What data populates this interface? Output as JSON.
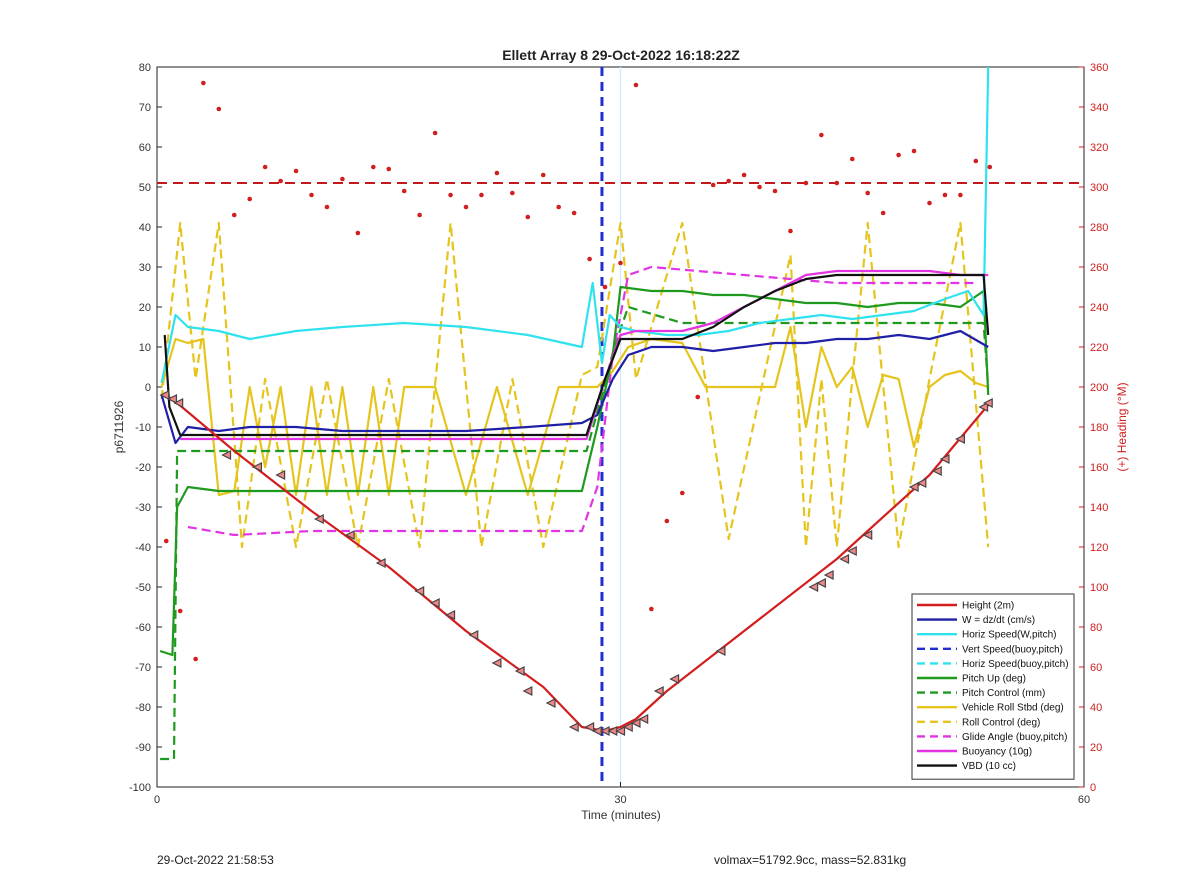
{
  "chart_data": {
    "type": "line",
    "title": "Ellett Array 8 29-Oct-2022 16:18:22Z",
    "xlabel": "Time (minutes)",
    "ylabel": "p6711926",
    "y2label": "(+) Heading (°M)",
    "xlim": [
      0,
      60
    ],
    "ylim": [
      -100,
      80
    ],
    "y2lim": [
      0,
      360
    ],
    "xticks": [
      0,
      30,
      60
    ],
    "yticks": [
      -100,
      -90,
      -80,
      -70,
      -60,
      -50,
      -40,
      -30,
      -20,
      -10,
      0,
      10,
      20,
      30,
      40,
      50,
      60,
      70,
      80
    ],
    "y2ticks": [
      0,
      20,
      40,
      60,
      80,
      100,
      120,
      140,
      160,
      180,
      200,
      220,
      240,
      260,
      280,
      300,
      320,
      340,
      360
    ],
    "grid": false,
    "legend_position": "bottom-right",
    "vlines": [
      {
        "x": 28.8,
        "color": "#1f2fd0",
        "dash": true
      },
      {
        "x": 30.0,
        "color": "#cfe8ff",
        "dash": false
      }
    ],
    "series": [
      {
        "name": "Height (2m)",
        "color": "#d21e1e",
        "style": "solid",
        "x": [
          0.5,
          1.0,
          5.0,
          10.0,
          15.0,
          20.0,
          25.0,
          27.5,
          29.0,
          30.0,
          31.0,
          33.0,
          38.0,
          44.0,
          50.0,
          53.9
        ],
        "y": [
          -2,
          -3,
          -16,
          -31,
          -45,
          -61,
          -75,
          -85,
          -86,
          -85,
          -83,
          -76,
          -61,
          -43,
          -22,
          -4
        ]
      },
      {
        "name": "W = dz/dt (cm/s)",
        "color": "#1f1fa8",
        "style": "solid",
        "x": [
          0.3,
          1.2,
          2,
          4,
          6,
          9,
          12,
          16,
          20,
          24,
          27.5,
          28.5,
          29.5,
          30.5,
          32,
          34,
          36,
          38,
          40,
          42,
          44,
          46,
          48,
          50,
          52,
          53.8
        ],
        "y": [
          -2,
          -14,
          -10,
          -11,
          -10,
          -10,
          -11,
          -11,
          -11,
          -10,
          -9,
          -7,
          2,
          8,
          10,
          10,
          9,
          10,
          11,
          11,
          12,
          12,
          13,
          12,
          14,
          10
        ]
      },
      {
        "name": "Horiz Speed(W,pitch)",
        "color": "#2fe2ee",
        "style": "solid",
        "x": [
          0.3,
          1.2,
          2,
          4,
          6,
          9,
          12,
          16,
          20,
          24,
          27.5,
          28.2,
          28.8,
          29.3,
          30,
          31,
          33,
          35,
          37,
          39,
          41,
          43,
          45,
          47,
          49,
          51,
          52.5,
          53.5,
          53.8
        ],
        "y": [
          1,
          18,
          15,
          14,
          12,
          14,
          15,
          16,
          15,
          13,
          10,
          26,
          6,
          18,
          15,
          14,
          13,
          13,
          14,
          16,
          17,
          18,
          17,
          18,
          19,
          22,
          24,
          18,
          80
        ]
      },
      {
        "name": "Vert Speed(buoy,pitch)",
        "color": "#1f2fd0",
        "style": "dashed",
        "x": [],
        "y": []
      },
      {
        "name": "Horiz Speed(buoy,pitch)",
        "color": "#2fe2ee",
        "style": "dashed",
        "x": [],
        "y": []
      },
      {
        "name": "Pitch Up (deg)",
        "color": "#1e9a1e",
        "style": "solid",
        "x": [
          0.2,
          1.0,
          1.3,
          2,
          4,
          6,
          9,
          12,
          16,
          20,
          24,
          27.5,
          28.5,
          29.5,
          30,
          32,
          34,
          36,
          38,
          40,
          42,
          44,
          46,
          48,
          50,
          52,
          53.5,
          53.8
        ],
        "y": [
          -66,
          -67,
          -30,
          -25,
          -26,
          -26,
          -26,
          -26,
          -26,
          -26,
          -26,
          -26,
          -10,
          8,
          25,
          24,
          24,
          23,
          23,
          22,
          21,
          21,
          20,
          21,
          21,
          20,
          24,
          -2
        ]
      },
      {
        "name": "Pitch Control (mm)",
        "color": "#1e9a1e",
        "style": "dashed",
        "x": [
          0.2,
          1.1,
          1.3,
          3,
          10,
          20,
          27.8,
          28.8,
          29.6,
          30.5,
          34,
          40,
          48,
          53.5,
          53.8
        ],
        "y": [
          -93,
          -93,
          -16,
          -16,
          -16,
          -16,
          -16,
          -2,
          10,
          20,
          16,
          16,
          16,
          16,
          0
        ]
      },
      {
        "name": "Vehicle Roll Stbd (deg)",
        "color": "#e6c41e",
        "style": "solid",
        "x": [
          0.3,
          1.2,
          2,
          3,
          4,
          5,
          6,
          7,
          8,
          9,
          10,
          11,
          12,
          13,
          14,
          15,
          16,
          18,
          20,
          22,
          24,
          26,
          27.5,
          28.5,
          29.5,
          30.5,
          32,
          34,
          35.5,
          36,
          38,
          40,
          41,
          42,
          43,
          44,
          45,
          46,
          47,
          48,
          49,
          50,
          51,
          52,
          53,
          53.8
        ],
        "y": [
          0,
          12,
          11,
          12,
          -27,
          -26,
          0,
          -20,
          0,
          -27,
          0,
          -27,
          0,
          -27,
          0,
          -27,
          0,
          0,
          -27,
          0,
          -27,
          0,
          0,
          0,
          4,
          10,
          12,
          11,
          0,
          0,
          0,
          0,
          15,
          -10,
          10,
          0,
          5,
          -10,
          3,
          2,
          -15,
          0,
          3,
          4,
          1,
          0
        ]
      },
      {
        "name": "Roll Control (deg)",
        "color": "#e6c41e",
        "style": "dashed",
        "x": [
          0.3,
          1.5,
          2.5,
          4,
          5.5,
          7,
          9,
          11,
          13,
          15,
          17,
          19,
          21,
          23,
          25,
          27.5,
          28.5,
          30,
          31,
          34,
          37,
          41,
          42,
          43,
          44,
          45,
          46,
          48,
          50,
          52,
          53.8
        ],
        "y": [
          -3,
          41,
          2,
          41,
          -40,
          2,
          -40,
          2,
          -40,
          2,
          -40,
          41,
          -40,
          2,
          -40,
          3,
          5,
          41,
          2,
          41,
          -38,
          33,
          -40,
          2,
          -40,
          2,
          41,
          -40,
          2,
          41,
          -40
        ]
      },
      {
        "name": "Glide Angle (buoy,pitch)",
        "color": "#e234e2",
        "style": "dashed",
        "x": [
          2,
          5,
          10,
          15,
          20,
          25,
          27.5,
          28.5,
          29.5,
          30.5,
          32,
          35,
          38,
          41,
          44,
          47,
          50,
          53
        ],
        "y": [
          -35,
          -37,
          -36,
          -36,
          -36,
          -36,
          -36,
          -25,
          8,
          28,
          30,
          29,
          28,
          27,
          26,
          26,
          26,
          26
        ]
      },
      {
        "name": "Buoyancy (10g)",
        "color": "#e234e2",
        "style": "solid",
        "x": [
          1.5,
          5,
          10,
          15,
          20,
          27.8,
          29.0,
          30.0,
          31,
          34,
          36,
          38,
          40,
          42,
          44,
          46,
          48,
          50,
          52,
          53.8
        ],
        "y": [
          -13,
          -13,
          -13,
          -13,
          -13,
          -13,
          2,
          13,
          14,
          14,
          16,
          20,
          24,
          28,
          29,
          29,
          29,
          29,
          28,
          28
        ]
      },
      {
        "name": "VBD (10 cc)",
        "color": "#111111",
        "style": "solid",
        "x": [
          0.5,
          0.8,
          1.5,
          5,
          10,
          15,
          20,
          27.8,
          29.0,
          30.0,
          31,
          34,
          36,
          38,
          40,
          42,
          44,
          46,
          48,
          50,
          52,
          53.5,
          53.8
        ],
        "y": [
          13,
          -5,
          -12,
          -12,
          -12,
          -12,
          -12,
          -12,
          2,
          12,
          12,
          12,
          15,
          20,
          24,
          27,
          28,
          28,
          28,
          28,
          28,
          28,
          13
        ]
      }
    ],
    "heading_points": {
      "color": "#d21e1e",
      "axis": "right",
      "mean_line": 302,
      "x": [
        0.6,
        1.5,
        2.5,
        3.0,
        4.0,
        5.0,
        6.0,
        7.0,
        8.0,
        9.0,
        10.0,
        11.0,
        12.0,
        13.0,
        14.0,
        15.0,
        16.0,
        17.0,
        18.0,
        19.0,
        20.0,
        21.0,
        22.0,
        23.0,
        24.0,
        25.0,
        26.0,
        27.0,
        28.0,
        29.0,
        30.0,
        31.0,
        32.0,
        33.0,
        34.0,
        35.0,
        36.0,
        37.0,
        38.0,
        39.0,
        40.0,
        41.0,
        42.0,
        43.0,
        44.0,
        45.0,
        46.0,
        47.0,
        48.0,
        49.0,
        50.0,
        51.0,
        52.0,
        53.0,
        53.9
      ],
      "y": [
        123,
        88,
        64,
        352,
        339,
        286,
        294,
        310,
        303,
        308,
        296,
        290,
        304,
        277,
        310,
        309,
        298,
        286,
        327,
        296,
        290,
        296,
        307,
        297,
        285,
        306,
        290,
        287,
        264,
        250,
        262,
        351,
        89,
        133,
        147,
        195,
        301,
        303,
        306,
        300,
        298,
        278,
        302,
        326,
        302,
        314,
        297,
        287,
        316,
        318,
        292,
        296,
        296,
        313,
        310
      ]
    },
    "waypoint_markers": {
      "color": "#444444",
      "x": [
        0.5,
        1.0,
        1.4,
        4.5,
        6.5,
        8.0,
        10.5,
        12.5,
        14.5,
        17.0,
        18.0,
        19.0,
        20.5,
        22.0,
        23.5,
        24.0,
        25.5,
        27.0,
        28.0,
        28.5,
        29.0,
        29.5,
        30.0,
        30.5,
        31.0,
        31.5,
        32.5,
        33.5,
        36.5,
        42.5,
        43.0,
        43.5,
        44.5,
        45.0,
        46.0,
        49.0,
        49.5,
        50.5,
        51.0,
        52.0,
        53.5,
        53.8
      ],
      "y": [
        -2,
        -3,
        -4,
        -17,
        -20,
        -22,
        -33,
        -37,
        -44,
        -51,
        -54,
        -57,
        -62,
        -69,
        -71,
        -76,
        -79,
        -85,
        -85,
        -86,
        -86,
        -86,
        -86,
        -85,
        -84,
        -83,
        -76,
        -73,
        -66,
        -50,
        -49,
        -47,
        -43,
        -41,
        -37,
        -25,
        -24,
        -21,
        -18,
        -13,
        -5,
        -4
      ]
    }
  },
  "footer": {
    "left": "29-Oct-2022 21:58:53",
    "right": "volmax=51792.9cc, mass=52.831kg"
  }
}
